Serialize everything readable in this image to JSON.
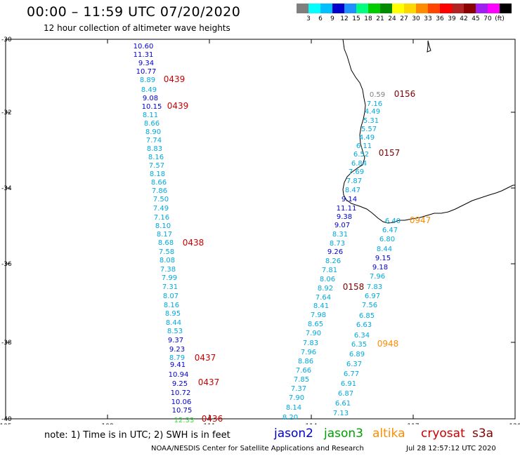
{
  "header": {
    "title": "00:00 – 11:59 UTC 07/20/2020",
    "subtitle": "12 hour collection of altimeter wave heights"
  },
  "color_scale": {
    "colors": [
      "#7f7f7f",
      "#00ffff",
      "#00bfff",
      "#0000cd",
      "#1e90ff",
      "#00ff7f",
      "#00cd00",
      "#008b00",
      "#ffff00",
      "#ffd700",
      "#ff8c00",
      "#ff4500",
      "#ff0000",
      "#b22222",
      "#8b0000",
      "#a020f0",
      "#ff00ff",
      "#000000"
    ],
    "labels": [
      "3",
      "6",
      "9",
      "12",
      "15",
      "18",
      "21",
      "24",
      "27",
      "30",
      "33",
      "36",
      "39",
      "42",
      "45",
      "70",
      "(ft)"
    ]
  },
  "axes": {
    "x_ticks": [
      "105",
      "108",
      "111",
      "114",
      "117",
      "120"
    ],
    "y_ticks": [
      "-30",
      "-32",
      "-34",
      "-36",
      "-38",
      "-40"
    ]
  },
  "colors": {
    "jason2": "#0000cd",
    "jason3": "#00a000",
    "altika": "#ff8c00",
    "cryosat": "#cc0000",
    "s3a": "#800000",
    "cyan": "#00aadd",
    "gray": "#808080",
    "green_light": "#33dd33"
  },
  "tracks": [
    {
      "id": "t1",
      "points": [
        [
          "10.60",
          "jason2"
        ],
        [
          "11.31",
          "jason2"
        ],
        [
          "9.34",
          "jason2"
        ],
        [
          "10.77",
          "jason2"
        ],
        [
          "8.89",
          "cyan"
        ],
        [
          "8.49",
          "cyan"
        ],
        [
          "9.08",
          "jason2"
        ],
        [
          "10.15",
          "jason2"
        ],
        [
          "8.11",
          "cyan"
        ],
        [
          "8.66",
          "cyan"
        ],
        [
          "8.90",
          "cyan"
        ],
        [
          "7.74",
          "cyan"
        ],
        [
          "8.83",
          "cyan"
        ],
        [
          "8.16",
          "cyan"
        ],
        [
          "7.57",
          "cyan"
        ],
        [
          "8.18",
          "cyan"
        ],
        [
          "8.66",
          "cyan"
        ],
        [
          "7.86",
          "cyan"
        ],
        [
          "7.50",
          "cyan"
        ],
        [
          "7.49",
          "cyan"
        ],
        [
          "7.16",
          "cyan"
        ],
        [
          "8.10",
          "cyan"
        ],
        [
          "8.17",
          "cyan"
        ],
        [
          "8.68",
          "cyan"
        ],
        [
          "7.58",
          "cyan"
        ],
        [
          "8.08",
          "cyan"
        ],
        [
          "7.38",
          "cyan"
        ],
        [
          "7.99",
          "cyan"
        ],
        [
          "7.31",
          "cyan"
        ],
        [
          "8.07",
          "cyan"
        ],
        [
          "8.16",
          "cyan"
        ],
        [
          "8.95",
          "cyan"
        ],
        [
          "8.44",
          "cyan"
        ],
        [
          "8.53",
          "cyan"
        ],
        [
          "9.37",
          "jason2"
        ],
        [
          "9.23",
          "jason2"
        ],
        [
          "8.79",
          "cyan"
        ],
        [
          "9.41",
          "jason2"
        ],
        [
          "10.94",
          "jason2"
        ],
        [
          "9.25",
          "jason2"
        ],
        [
          "10.72",
          "jason2"
        ],
        [
          "10.06",
          "jason2"
        ],
        [
          "10.75",
          "jason2"
        ],
        [
          "12.33",
          "green_light"
        ]
      ]
    },
    {
      "id": "t2",
      "points": [
        [
          "0.59",
          "gray"
        ],
        [
          "7.16",
          "cyan"
        ],
        [
          "4.49",
          "cyan"
        ],
        [
          "5.31",
          "cyan"
        ],
        [
          "5.57",
          "cyan"
        ],
        [
          "4.49",
          "cyan"
        ],
        [
          "6.11",
          "cyan"
        ],
        [
          "6.52",
          "cyan"
        ],
        [
          "6.84",
          "cyan"
        ],
        [
          "7.69",
          "cyan"
        ],
        [
          "7.87",
          "cyan"
        ],
        [
          "8.47",
          "cyan"
        ],
        [
          "9.14",
          "jason2"
        ],
        [
          "11.11",
          "jason2"
        ],
        [
          "9.38",
          "jason2"
        ],
        [
          "9.07",
          "jason2"
        ],
        [
          "8.31",
          "cyan"
        ],
        [
          "8.73",
          "cyan"
        ],
        [
          "9.26",
          "jason2"
        ],
        [
          "8.26",
          "cyan"
        ],
        [
          "7.81",
          "cyan"
        ],
        [
          "8.06",
          "cyan"
        ],
        [
          "8.92",
          "cyan"
        ],
        [
          "7.64",
          "cyan"
        ],
        [
          "8.41",
          "cyan"
        ],
        [
          "7.98",
          "cyan"
        ],
        [
          "8.65",
          "cyan"
        ],
        [
          "7.90",
          "cyan"
        ],
        [
          "7.83",
          "cyan"
        ],
        [
          "7.96",
          "cyan"
        ],
        [
          "8.86",
          "cyan"
        ],
        [
          "7.66",
          "cyan"
        ],
        [
          "7.85",
          "cyan"
        ],
        [
          "7.37",
          "cyan"
        ],
        [
          "7.90",
          "cyan"
        ],
        [
          "8.14",
          "cyan"
        ],
        [
          "8.20",
          "cyan"
        ]
      ]
    },
    {
      "id": "t3",
      "points": [
        [
          "6.40",
          "cyan"
        ],
        [
          "6.47",
          "cyan"
        ],
        [
          "6.80",
          "cyan"
        ],
        [
          "8.44",
          "cyan"
        ],
        [
          "9.15",
          "jason2"
        ],
        [
          "9.18",
          "jason2"
        ],
        [
          "7.96",
          "cyan"
        ],
        [
          "7.83",
          "cyan"
        ],
        [
          "6.97",
          "cyan"
        ],
        [
          "7.56",
          "cyan"
        ],
        [
          "6.85",
          "cyan"
        ],
        [
          "6.63",
          "cyan"
        ],
        [
          "6.34",
          "cyan"
        ],
        [
          "6.35",
          "cyan"
        ],
        [
          "6.89",
          "cyan"
        ],
        [
          "6.37",
          "cyan"
        ],
        [
          "6.77",
          "cyan"
        ],
        [
          "6.91",
          "cyan"
        ],
        [
          "6.87",
          "cyan"
        ],
        [
          "6.61",
          "cyan"
        ],
        [
          "7.13",
          "cyan"
        ]
      ]
    }
  ],
  "time_labels": [
    {
      "text": "0439",
      "sat": "cryosat"
    },
    {
      "text": "0439",
      "sat": "cryosat"
    },
    {
      "text": "0438",
      "sat": "cryosat"
    },
    {
      "text": "0437",
      "sat": "cryosat"
    },
    {
      "text": "0437",
      "sat": "cryosat"
    },
    {
      "text": "0436",
      "sat": "cryosat"
    },
    {
      "text": "0156",
      "sat": "s3a"
    },
    {
      "text": "0157",
      "sat": "s3a"
    },
    {
      "text": "0158",
      "sat": "s3a"
    },
    {
      "text": "0947",
      "sat": "altika"
    },
    {
      "text": "0948",
      "sat": "altika"
    }
  ],
  "footer": {
    "note": "note:  1) Time is in UTC;  2) SWH is in feet",
    "legend": [
      {
        "label": "jason2",
        "sat": "jason2"
      },
      {
        "label": "jason3",
        "sat": "jason3"
      },
      {
        "label": "altika",
        "sat": "altika"
      },
      {
        "label": "cryosat",
        "sat": "cryosat"
      },
      {
        "label": "s3a",
        "sat": "s3a"
      }
    ],
    "credit": "NOAA/NESDIS Center for Satellite Applications and Research",
    "timestamp": "Jul 28 12:57:12 UTC 2020"
  }
}
